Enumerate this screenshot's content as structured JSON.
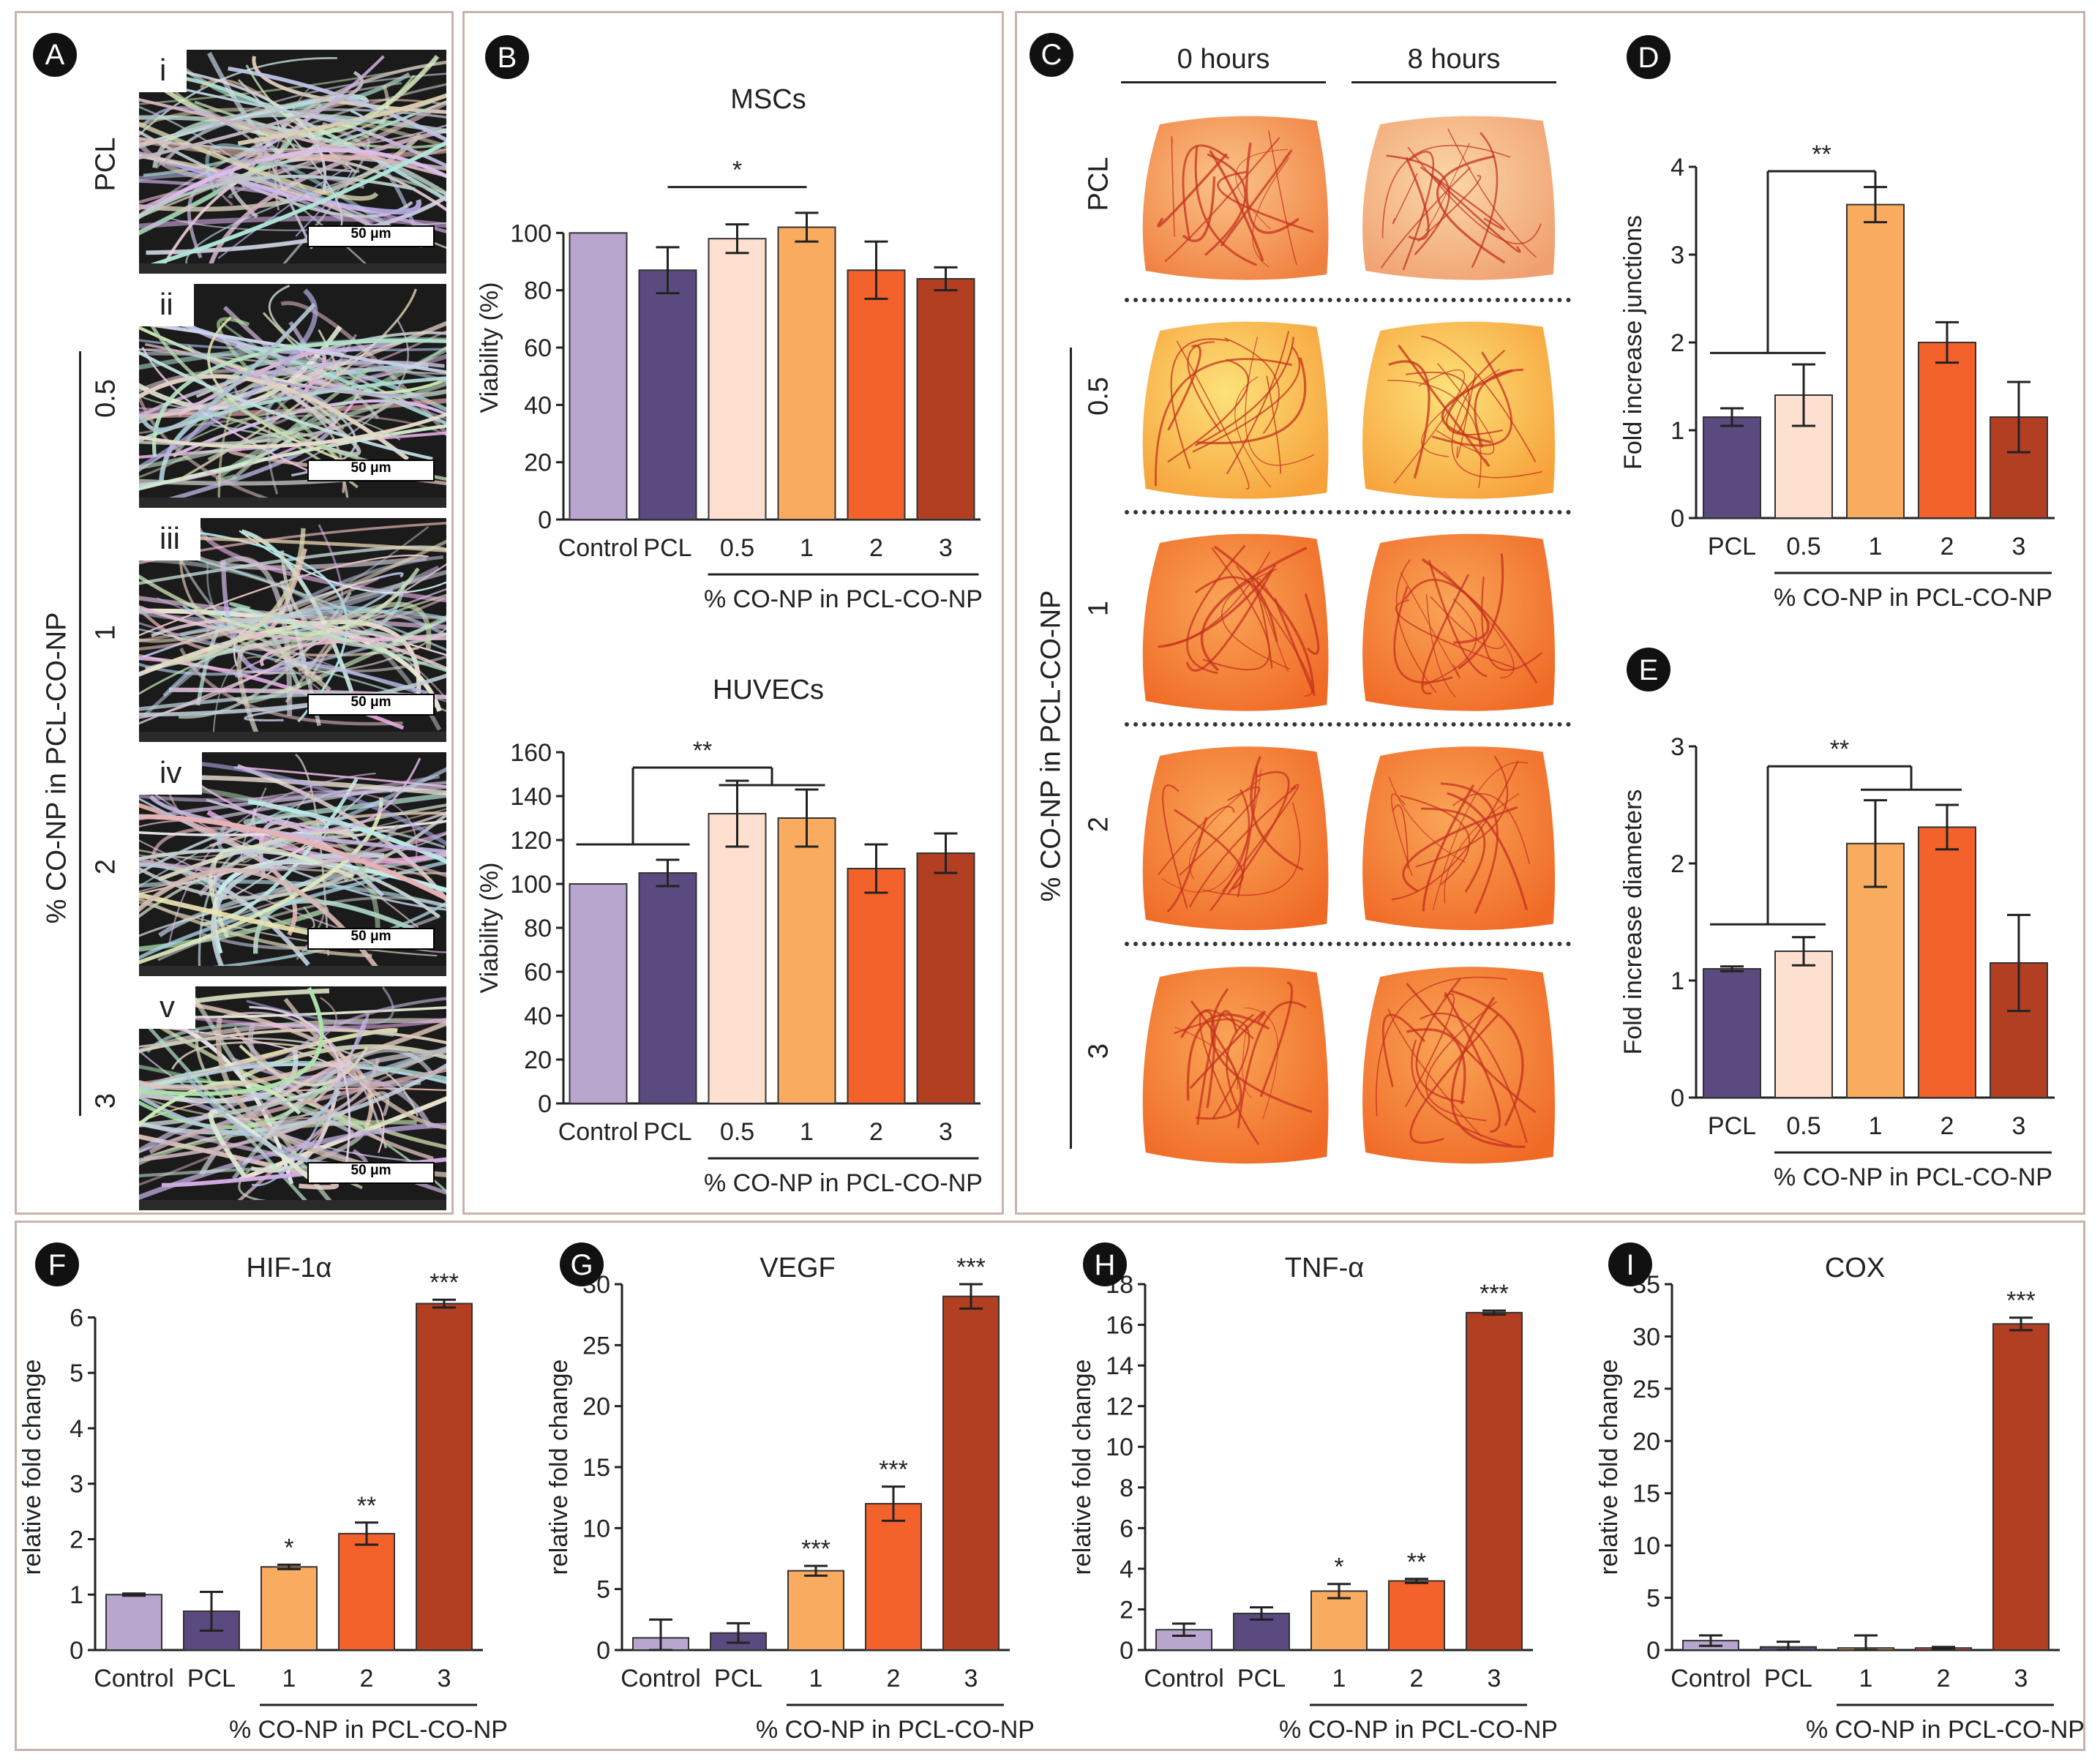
{
  "colors": {
    "control": "#b8a6cf",
    "pcl": "#5a4a80",
    "p05": "#fde0d0",
    "p1": "#f9ac5f",
    "p2": "#f2622a",
    "p3": "#b23f22",
    "frame": "#c9b3ad"
  },
  "panel_letters": [
    "A",
    "B",
    "C",
    "D",
    "E",
    "F",
    "G",
    "H",
    "I"
  ],
  "panel_A": {
    "rows": [
      {
        "roman": "i",
        "group_label": "PCL",
        "scale_label": "50 μm"
      },
      {
        "roman": "ii",
        "group_label": "0.5",
        "scale_label": "50 μm"
      },
      {
        "roman": "iii",
        "group_label": "1",
        "scale_label": "50 μm"
      },
      {
        "roman": "iv",
        "group_label": "2",
        "scale_label": "50 μm"
      },
      {
        "roman": "v",
        "group_label": "3",
        "scale_label": "50 μm"
      }
    ],
    "side_label": "% CO-NP in PCL-CO-NP"
  },
  "panel_C": {
    "col_headers": [
      "0 hours",
      "8 hours"
    ],
    "row_labels": [
      "PCL",
      "0.5",
      "1",
      "2",
      "3"
    ],
    "side_label": "% CO-NP in PCL-CO-NP"
  },
  "chart_data": [
    {
      "id": "B-top",
      "type": "bar",
      "title": "MSCs",
      "categories": [
        "Control",
        "PCL",
        "0.5",
        "1",
        "2",
        "3"
      ],
      "values": [
        100,
        87,
        98,
        102,
        87,
        84
      ],
      "errors": [
        0,
        8,
        5,
        5,
        10,
        4
      ],
      "ylabel": "Viability (%)",
      "xlabel": "% CO-NP in PCL-CO-NP",
      "ylim": [
        0,
        120
      ],
      "yticks": [
        0,
        20,
        40,
        60,
        80,
        100
      ],
      "significance": [
        {
          "label": "*"
        }
      ]
    },
    {
      "id": "B-bottom",
      "type": "bar",
      "title": "HUVECs",
      "categories": [
        "Control",
        "PCL",
        "0.5",
        "1",
        "2",
        "3"
      ],
      "values": [
        100,
        105,
        132,
        130,
        107,
        114
      ],
      "errors": [
        0,
        6,
        15,
        13,
        11,
        9
      ],
      "ylabel": "Viability (%)",
      "xlabel": "% CO-NP in PCL-CO-NP",
      "ylim": [
        0,
        160
      ],
      "yticks": [
        0,
        20,
        40,
        60,
        80,
        100,
        120,
        140,
        160
      ],
      "significance": [
        {
          "label": "**"
        }
      ]
    },
    {
      "id": "D",
      "type": "bar",
      "title": "",
      "categories": [
        "PCL",
        "0.5",
        "1",
        "2",
        "3"
      ],
      "values": [
        1.15,
        1.4,
        3.57,
        2.0,
        1.15
      ],
      "errors": [
        0.1,
        0.35,
        0.2,
        0.23,
        0.4
      ],
      "ylabel": "Fold increase junctions",
      "xlabel": "% CO-NP in PCL-CO-NP",
      "ylim": [
        0,
        4
      ],
      "yticks": [
        0,
        1,
        2,
        3,
        4
      ],
      "significance": [
        {
          "label": "**"
        }
      ]
    },
    {
      "id": "E",
      "type": "bar",
      "title": "",
      "categories": [
        "PCL",
        "0.5",
        "1",
        "2",
        "3"
      ],
      "values": [
        1.1,
        1.25,
        2.17,
        2.31,
        1.15
      ],
      "errors": [
        0.02,
        0.12,
        0.37,
        0.19,
        0.41
      ],
      "ylabel": "Fold increase diameters",
      "xlabel": "% CO-NP in PCL-CO-NP",
      "ylim": [
        0,
        3
      ],
      "yticks": [
        0,
        1,
        2,
        3
      ],
      "significance": [
        {
          "label": "**"
        }
      ]
    },
    {
      "id": "F",
      "type": "bar",
      "title": "HIF-1α",
      "categories": [
        "Control",
        "PCL",
        "1",
        "2",
        "3"
      ],
      "values": [
        1.0,
        0.7,
        1.5,
        2.1,
        6.25
      ],
      "errors": [
        0.02,
        0.35,
        0.04,
        0.2,
        0.07
      ],
      "sig": [
        "",
        "",
        "*",
        "**",
        "***"
      ],
      "ylabel": "relative fold change",
      "xlabel": "% CO-NP in PCL-CO-NP",
      "ylim": [
        0,
        6.6
      ],
      "yticks": [
        0,
        1,
        2,
        3,
        4,
        5,
        6
      ]
    },
    {
      "id": "G",
      "type": "bar",
      "title": "VEGF",
      "categories": [
        "Control",
        "PCL",
        "1",
        "2",
        "3"
      ],
      "values": [
        1.0,
        1.4,
        6.5,
        12.0,
        29.0
      ],
      "errors": [
        1.5,
        0.8,
        0.4,
        1.4,
        1.0
      ],
      "sig": [
        "",
        "",
        "***",
        "***",
        "***"
      ],
      "ylabel": "relative fold change",
      "xlabel": "% CO-NP in PCL-CO-NP",
      "ylim": [
        0,
        30
      ],
      "yticks": [
        0,
        5,
        10,
        15,
        20,
        25,
        30
      ]
    },
    {
      "id": "H",
      "type": "bar",
      "title": "TNF-α",
      "categories": [
        "Control",
        "PCL",
        "1",
        "2",
        "3"
      ],
      "values": [
        1.0,
        1.8,
        2.9,
        3.4,
        16.6
      ],
      "errors": [
        0.3,
        0.3,
        0.35,
        0.1,
        0.1
      ],
      "sig": [
        "",
        "",
        "*",
        "**",
        "***"
      ],
      "ylabel": "relative fold change",
      "xlabel": "% CO-NP in PCL-CO-NP",
      "ylim": [
        0,
        18
      ],
      "yticks": [
        0,
        2,
        4,
        6,
        8,
        10,
        12,
        14,
        16,
        18
      ]
    },
    {
      "id": "I",
      "type": "bar",
      "title": "COX",
      "categories": [
        "Control",
        "PCL",
        "1",
        "2",
        "3"
      ],
      "values": [
        0.9,
        0.3,
        0.2,
        0.2,
        31.2
      ],
      "errors": [
        0.5,
        0.5,
        1.2,
        0.1,
        0.6
      ],
      "sig": [
        "",
        "",
        "",
        "",
        "***"
      ],
      "ylabel": "relative fold change",
      "xlabel": "% CO-NP in PCL-CO-NP",
      "ylim": [
        0,
        35
      ],
      "yticks": [
        0,
        5,
        10,
        15,
        20,
        25,
        30,
        35
      ]
    }
  ]
}
